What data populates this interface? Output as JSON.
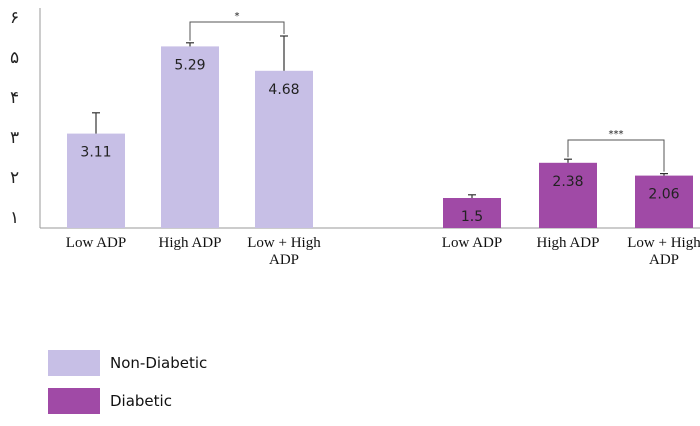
{
  "chart_data": {
    "type": "bar",
    "groups": [
      {
        "series_name": "Non-Diabetic",
        "color": "#c7bfe6",
        "categories": [
          [
            "Low ADP"
          ],
          [
            "High ADP"
          ],
          [
            "Low + High",
            "ADP"
          ]
        ],
        "values": [
          3.11,
          5.29,
          4.68
        ],
        "value_labels": [
          "3.11",
          "5.29",
          "4.68"
        ],
        "error_upper": [
          3.63,
          5.38,
          5.55
        ],
        "significance": [
          {
            "from": 1,
            "to": 2,
            "label": "*",
            "y": 5.9
          }
        ]
      },
      {
        "series_name": "Diabetic",
        "color": "#a04aa6",
        "categories": [
          [
            "Low ADP"
          ],
          [
            "High ADP"
          ],
          [
            "Low + High",
            "ADP"
          ]
        ],
        "values": [
          1.5,
          2.38,
          2.06
        ],
        "value_labels": [
          "1.5",
          "2.38",
          "2.06"
        ],
        "error_upper": [
          1.58,
          2.47,
          2.11
        ],
        "significance": [
          {
            "from": 1,
            "to": 2,
            "label": "***",
            "y": 2.95
          }
        ]
      }
    ],
    "yticks": [
      1,
      2,
      3,
      4,
      5,
      6
    ],
    "ytick_labels": [
      "١",
      "٢",
      "٣",
      "۴",
      "۵",
      "۶"
    ],
    "ylim": [
      0.75,
      6.15
    ],
    "grid": false,
    "legend_position": "bottom-left"
  },
  "legend": {
    "items": [
      {
        "label": "Non-Diabetic",
        "color": "#c7bfe6"
      },
      {
        "label": "Diabetic",
        "color": "#a04aa6"
      }
    ]
  }
}
